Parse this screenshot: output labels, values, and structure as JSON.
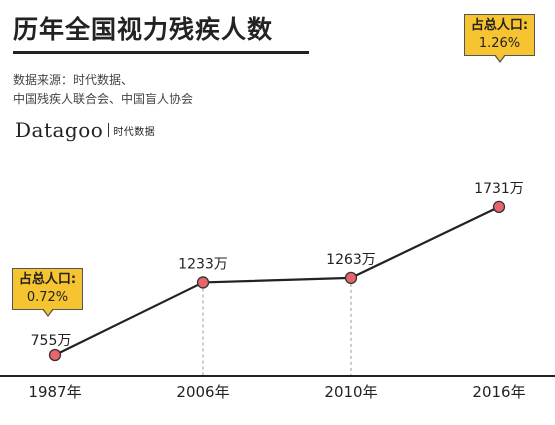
{
  "title": "历年全国视力残疾人数",
  "source": {
    "line1": "数据来源：时代数据、",
    "line2": "中国残疾人联合会、中国盲人协会"
  },
  "logo": {
    "main": "Datagoo",
    "sub": "时代数据"
  },
  "callouts": [
    {
      "label": "占总人口:",
      "value": "0.72%"
    },
    {
      "label": "占总人口:",
      "value": "1.26%"
    }
  ],
  "colors": {
    "line": "#222222",
    "marker_fill": "#e8666b",
    "callout_fill": "#f6c431",
    "guide": "#999999"
  },
  "chart_data": {
    "type": "line",
    "title": "历年全国视力残疾人数",
    "categories": [
      "1987年",
      "2006年",
      "2010年",
      "2016年"
    ],
    "values": [
      755,
      1233,
      1263,
      1731
    ],
    "value_labels": [
      "755万",
      "1233万",
      "1263万",
      "1731万"
    ],
    "ylim": [
      700,
      1800
    ],
    "grid": false,
    "annotations": [
      {
        "category": "1987年",
        "text": "占总人口: 0.72%"
      },
      {
        "category": "2016年",
        "text": "占总人口: 1.26%"
      }
    ]
  }
}
